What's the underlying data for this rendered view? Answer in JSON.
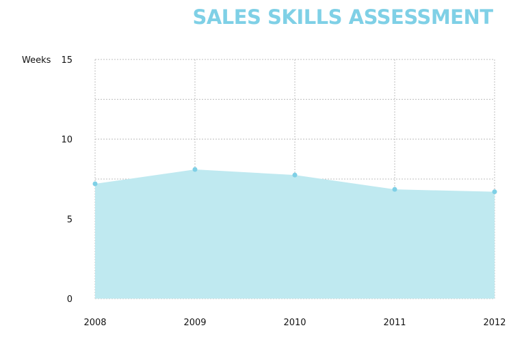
{
  "chart_data": {
    "type": "area",
    "title": "SALES SKILLS ASSESSMENT",
    "ylabel": "Weeks",
    "xlabel": "",
    "categories": [
      "2008",
      "2009",
      "2010",
      "2011",
      "2012"
    ],
    "values": [
      7.2,
      8.1,
      7.75,
      6.85,
      6.7
    ],
    "ylim": [
      0,
      15
    ],
    "yticks": [
      "0",
      "5",
      "10",
      "15"
    ],
    "grid": true,
    "legend": "none",
    "colors": {
      "title": "#7fd0e6",
      "area_fill": "#bfe9f0",
      "line": "#bfe9f0",
      "point": "#7fd0e6",
      "grid": "#bcbcbc"
    }
  }
}
